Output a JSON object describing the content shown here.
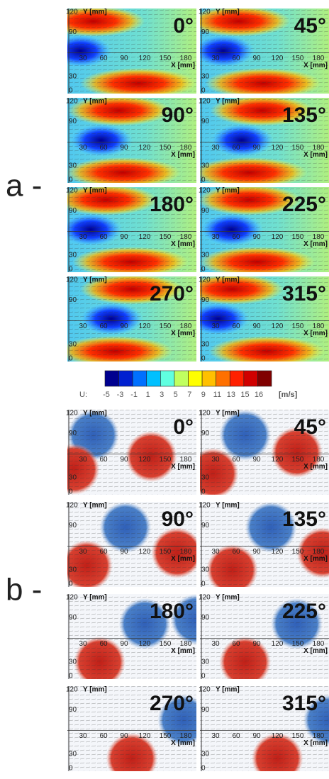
{
  "panels": [
    {
      "label": "a -",
      "plots": [
        {
          "angle": "0°"
        },
        {
          "angle": "45°"
        },
        {
          "angle": "90°"
        },
        {
          "angle": "135°"
        },
        {
          "angle": "180°"
        },
        {
          "angle": "225°"
        },
        {
          "angle": "270°"
        },
        {
          "angle": "315°"
        }
      ]
    },
    {
      "label": "b -",
      "plots": [
        {
          "angle": "0°"
        },
        {
          "angle": "45°"
        },
        {
          "angle": "90°"
        },
        {
          "angle": "135°"
        },
        {
          "angle": "180°"
        },
        {
          "angle": "225°"
        },
        {
          "angle": "270°"
        },
        {
          "angle": "315°"
        }
      ]
    }
  ],
  "axes": {
    "y_label": "Y [mm]",
    "x_label": "X [mm]",
    "y_top": "120",
    "y_ticks": [
      "90",
      "30",
      "0"
    ],
    "x_ticks": [
      "30",
      "60",
      "90",
      "120",
      "150",
      "180"
    ]
  },
  "colorbar": {
    "label": "U:",
    "ticks": [
      "-5",
      "-3",
      "-1",
      "1",
      "3",
      "5",
      "7",
      "9",
      "11",
      "13",
      "15",
      "16"
    ],
    "unit": "[m/s]",
    "colors": [
      "#00008f",
      "#0020d0",
      "#0070ff",
      "#00c0ff",
      "#60ffe0",
      "#c0ff60",
      "#ffff00",
      "#ffc000",
      "#ff7000",
      "#ff2000",
      "#d00000",
      "#800000"
    ]
  }
}
